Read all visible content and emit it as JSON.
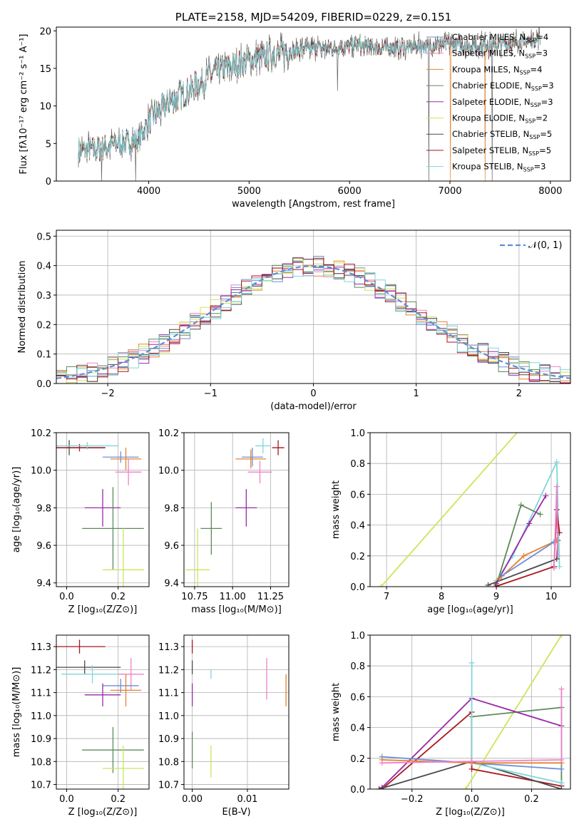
{
  "chart_data": [
    {
      "id": "spectrum",
      "type": "line",
      "title": "PLATE=2158, MJD=54209, FIBERID=0229, z=0.151",
      "xlabel": "wavelength [Angstrom, rest frame]",
      "ylabel": "Flux [fλ10⁻¹⁷ erg cm⁻² s⁻¹ A⁻¹]",
      "xlim": [
        3080,
        8200
      ],
      "ylim": [
        0,
        20.5
      ],
      "xticks": [
        4000,
        5000,
        6000,
        7000,
        8000
      ],
      "yticks": [
        0,
        5,
        10,
        15,
        20
      ],
      "grid": false,
      "legend_position": "top-right",
      "continuum_x": [
        3300,
        3500,
        3700,
        3900,
        4000,
        4200,
        4400,
        4600,
        4800,
        5000,
        5200,
        5400,
        5600,
        5800,
        6000,
        6200,
        6400,
        6600,
        6800,
        7000,
        7200,
        7400,
        7600,
        7800,
        7900
      ],
      "continuum_y": [
        4.1,
        4.3,
        5.0,
        5.5,
        8.0,
        10.5,
        12.0,
        14.0,
        15.2,
        16.0,
        16.8,
        17.3,
        17.6,
        17.8,
        18.0,
        17.9,
        17.7,
        17.8,
        18.0,
        18.2,
        18.0,
        18.1,
        18.4,
        18.7,
        19.0
      ],
      "series": [
        {
          "name": "Chabrier MILES, N",
          "sub": "SSP",
          "nval": "=4",
          "color": "#6b8fd6"
        },
        {
          "name": "Salpeter MILES, N",
          "sub": "SSP",
          "nval": "=3",
          "color": "#ee82c8"
        },
        {
          "name": "Kroupa MILES, N",
          "sub": "SSP",
          "nval": "=4",
          "color": "#e5822f"
        },
        {
          "name": "Chabrier ELODIE, N",
          "sub": "SSP",
          "nval": "=3",
          "color": "#5b8a5b"
        },
        {
          "name": "Salpeter ELODIE, N",
          "sub": "SSP",
          "nval": "=3",
          "color": "#9a2aa9"
        },
        {
          "name": "Kroupa ELODIE, N",
          "sub": "SSP",
          "nval": "=2",
          "color": "#cbe65a"
        },
        {
          "name": "Chabrier STELIB, N",
          "sub": "SSP",
          "nval": "=5",
          "color": "#4a4a4a"
        },
        {
          "name": "Salpeter STELIB, N",
          "sub": "SSP",
          "nval": "=5",
          "color": "#a8161e"
        },
        {
          "name": "Kroupa STELIB, N",
          "sub": "SSP",
          "nval": "=3",
          "color": "#7fd6db"
        }
      ]
    },
    {
      "id": "residuals",
      "type": "step",
      "xlabel": "(data-model)/error",
      "ylabel": "Normed distribution",
      "xlim": [
        -2.5,
        2.5
      ],
      "ylim": [
        0,
        0.52
      ],
      "xticks": [
        -2,
        -1,
        0,
        1,
        2
      ],
      "yticks": [
        0.0,
        0.1,
        0.2,
        0.3,
        0.4,
        0.5
      ],
      "grid": true,
      "legend_position": "top-right",
      "gaussian_label": "𝒩(0, 1)",
      "gaussian_color": "#5b8fd6"
    },
    {
      "id": "age_vs_Z",
      "type": "scatter",
      "xlabel": "Z [log₁₀(Z/Z⊙)]",
      "ylabel": "age  [log₁₀(age/yr)]",
      "xlim": [
        -0.04,
        0.32
      ],
      "ylim": [
        9.38,
        10.2
      ],
      "xticks": [
        0.0,
        0.2
      ],
      "yticks": [
        9.4,
        9.6,
        9.8,
        10.0,
        10.2
      ],
      "grid": true,
      "points": [
        {
          "x": 0.01,
          "xerr": 0.14,
          "y": 10.12,
          "yerr": 0.04,
          "color": "#4a4a4a"
        },
        {
          "x": 0.05,
          "xerr": 0.1,
          "y": 10.12,
          "yerr": 0.02,
          "color": "#a8161e"
        },
        {
          "x": 0.08,
          "xerr": 0.12,
          "y": 10.13,
          "yerr": 0.02,
          "color": "#7fd6db"
        },
        {
          "x": 0.21,
          "xerr": 0.07,
          "y": 10.07,
          "yerr": 0.03,
          "color": "#6b8fd6"
        },
        {
          "x": 0.23,
          "xerr": 0.06,
          "y": 10.06,
          "yerr": 0.06,
          "color": "#e5822f"
        },
        {
          "x": 0.24,
          "xerr": 0.05,
          "y": 9.99,
          "yerr": 0.07,
          "color": "#ee82c8"
        },
        {
          "x": 0.14,
          "xerr": 0.07,
          "y": 9.8,
          "yerr": 0.1,
          "color": "#9a2aa9"
        },
        {
          "x": 0.18,
          "xerr": 0.12,
          "y": 9.69,
          "yerr": 0.22,
          "color": "#5b8a5b"
        },
        {
          "x": 0.22,
          "xerr": 0.08,
          "y": 9.47,
          "yerr": 0.22,
          "color": "#cbe65a"
        }
      ]
    },
    {
      "id": "age_vs_mass",
      "type": "scatter",
      "xlabel": "mass [log₁₀(M/M⊙)]",
      "xlim": [
        10.68,
        11.37
      ],
      "ylim": [
        9.38,
        10.2
      ],
      "xticks": [
        10.75,
        11.0,
        11.25
      ],
      "yticks": [
        9.4,
        9.6,
        9.8,
        10.0,
        10.2
      ],
      "grid": true,
      "points": [
        {
          "x": 11.3,
          "xerr": 0.04,
          "y": 10.12,
          "yerr": 0.04,
          "color": "#a8161e"
        },
        {
          "x": 11.2,
          "xerr": 0.05,
          "y": 10.13,
          "yerr": 0.04,
          "color": "#7fd6db"
        },
        {
          "x": 11.13,
          "xerr": 0.07,
          "y": 10.07,
          "yerr": 0.05,
          "color": "#6b8fd6"
        },
        {
          "x": 11.12,
          "xerr": 0.1,
          "y": 10.06,
          "yerr": 0.05,
          "color": "#e5822f"
        },
        {
          "x": 11.18,
          "xerr": 0.08,
          "y": 9.99,
          "yerr": 0.06,
          "color": "#ee82c8"
        },
        {
          "x": 11.09,
          "xerr": 0.07,
          "y": 9.8,
          "yerr": 0.1,
          "color": "#9a2aa9"
        },
        {
          "x": 10.86,
          "xerr": 0.07,
          "y": 9.69,
          "yerr": 0.14,
          "color": "#5b8a5b"
        },
        {
          "x": 10.77,
          "xerr": 0.08,
          "y": 9.47,
          "yerr": 0.22,
          "color": "#cbe65a"
        }
      ]
    },
    {
      "id": "weight_vs_age",
      "type": "line",
      "xlabel": "age  [log₁₀(age/yr)]",
      "ylabel": "mass weight",
      "xlim": [
        6.7,
        10.35
      ],
      "ylim": [
        0,
        1.0
      ],
      "xticks": [
        7,
        8,
        9,
        10
      ],
      "yticks": [
        0.0,
        0.2,
        0.4,
        0.6,
        0.8,
        1.0
      ],
      "grid": true
    },
    {
      "id": "mass_vs_Z",
      "type": "scatter",
      "xlabel": "Z [log₁₀(Z/Z⊙)]",
      "ylabel": "mass [log₁₀(M/M⊙)]",
      "xlim": [
        -0.04,
        0.32
      ],
      "ylim": [
        10.68,
        11.35
      ],
      "xticks": [
        0.0,
        0.2
      ],
      "yticks": [
        10.7,
        10.8,
        10.9,
        11.0,
        11.1,
        11.2,
        11.3
      ],
      "grid": true,
      "points": [
        {
          "x": 0.05,
          "xerr": 0.1,
          "y": 11.3,
          "yerr": 0.03,
          "color": "#a8161e"
        },
        {
          "x": 0.07,
          "xerr": 0.14,
          "y": 11.21,
          "yerr": 0.03,
          "color": "#4a4a4a"
        },
        {
          "x": 0.1,
          "xerr": 0.12,
          "y": 11.18,
          "yerr": 0.04,
          "color": "#7fd6db"
        },
        {
          "x": 0.25,
          "xerr": 0.05,
          "y": 11.18,
          "yerr": 0.07,
          "color": "#ee82c8"
        },
        {
          "x": 0.21,
          "xerr": 0.07,
          "y": 11.13,
          "yerr": 0.03,
          "color": "#6b8fd6"
        },
        {
          "x": 0.23,
          "xerr": 0.06,
          "y": 11.11,
          "yerr": 0.07,
          "color": "#e5822f"
        },
        {
          "x": 0.14,
          "xerr": 0.07,
          "y": 11.09,
          "yerr": 0.05,
          "color": "#9a2aa9"
        },
        {
          "x": 0.18,
          "xerr": 0.12,
          "y": 10.85,
          "yerr": 0.1,
          "color": "#5b8a5b"
        },
        {
          "x": 0.22,
          "xerr": 0.08,
          "y": 10.77,
          "yerr": 0.1,
          "color": "#cbe65a"
        }
      ]
    },
    {
      "id": "mass_vs_EBV",
      "type": "scatter",
      "xlabel": "E(B-V)",
      "xlim": [
        -0.0015,
        0.0175
      ],
      "ylim": [
        10.68,
        11.35
      ],
      "xticks": [
        0.0,
        0.01
      ],
      "yticks": [
        10.7,
        10.8,
        10.9,
        11.0,
        11.1,
        11.2,
        11.3
      ],
      "grid": true,
      "points": [
        {
          "x": 0.0,
          "y": 11.3,
          "yerr": 0.03,
          "color": "#a8161e"
        },
        {
          "x": 0.0,
          "y": 11.21,
          "yerr": 0.03,
          "color": "#4a4a4a"
        },
        {
          "x": 0.0,
          "y": 11.09,
          "yerr": 0.05,
          "color": "#9a2aa9"
        },
        {
          "x": 0.0,
          "y": 10.85,
          "yerr": 0.08,
          "color": "#5b8a5b"
        },
        {
          "x": 0.0034,
          "y": 11.18,
          "yerr": 0.02,
          "color": "#7fd6db"
        },
        {
          "x": 0.0034,
          "y": 10.8,
          "yerr": 0.07,
          "color": "#cbe65a"
        },
        {
          "x": 0.0135,
          "y": 11.16,
          "yerr": 0.09,
          "color": "#ee82c8"
        },
        {
          "x": 0.017,
          "y": 11.11,
          "yerr": 0.07,
          "color": "#e5822f"
        }
      ]
    },
    {
      "id": "weight_vs_Z",
      "type": "line",
      "xlabel": "Z [log₁₀(Z/Z⊙)]",
      "ylabel": "mass weight",
      "xlim": [
        -0.34,
        0.33
      ],
      "ylim": [
        0,
        1.0
      ],
      "xticks": [
        -0.2,
        0.0,
        0.2
      ],
      "yticks": [
        0.0,
        0.2,
        0.4,
        0.6,
        0.8,
        1.0
      ],
      "grid": true
    }
  ]
}
